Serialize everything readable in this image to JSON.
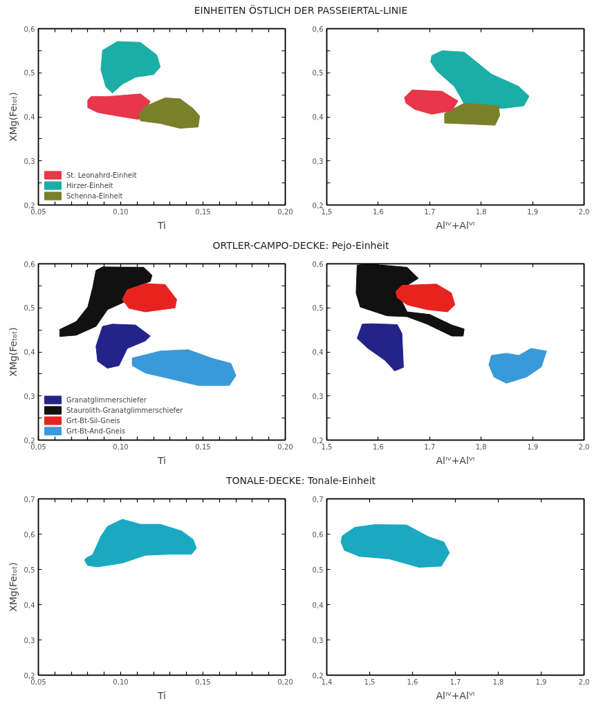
{
  "chart_data": [
    {
      "type": "area",
      "title": "EINHEITEN ÖSTLICH DER PASSEIERTAL-LINIE",
      "xlabel": "Ti",
      "ylabel": "XMg(Feₜₒₜ)",
      "xlim": [
        0.05,
        0.2
      ],
      "ylim": [
        0.2,
        0.6
      ],
      "grid": false,
      "legend": "bottom left",
      "xticks": [
        {
          "value": 0.05,
          "label": "0,05"
        },
        {
          "value": 0.06,
          "label": null
        },
        {
          "value": 0.07,
          "label": null
        },
        {
          "value": 0.08,
          "label": null
        },
        {
          "value": 0.09,
          "label": null
        },
        {
          "value": 0.1,
          "label": "0,10"
        },
        {
          "value": 0.11,
          "label": null
        },
        {
          "value": 0.12,
          "label": null
        },
        {
          "value": 0.13,
          "label": null
        },
        {
          "value": 0.14,
          "label": null
        },
        {
          "value": 0.15,
          "label": "0,15"
        },
        {
          "value": 0.16,
          "label": null
        },
        {
          "value": 0.17,
          "label": null
        },
        {
          "value": 0.18,
          "label": null
        },
        {
          "value": 0.19,
          "label": null
        },
        {
          "value": 0.2,
          "label": "0,20"
        }
      ],
      "yticks": [
        {
          "value": 0.2,
          "label": "0,2"
        },
        {
          "value": 0.25,
          "label": null
        },
        {
          "value": 0.3,
          "label": "0,3"
        },
        {
          "value": 0.35,
          "label": null
        },
        {
          "value": 0.4,
          "label": "0,4"
        },
        {
          "value": 0.45,
          "label": null
        },
        {
          "value": 0.5,
          "label": "0,5"
        },
        {
          "value": 0.55,
          "label": null
        },
        {
          "value": 0.6,
          "label": "0,6"
        }
      ],
      "series": [
        {
          "name": "St. Leonahrd-Einheit",
          "color": "#e8364a",
          "x": [
            0.08,
            0.082,
            0.092,
            0.112,
            0.118,
            0.111,
            0.098,
            0.086,
            0.08
          ],
          "values": [
            0.438,
            0.446,
            0.446,
            0.452,
            0.435,
            0.394,
            0.402,
            0.41,
            0.421
          ]
        },
        {
          "name": "Hirzer-Einheit",
          "color": "#1aaea6",
          "x": [
            0.095,
            0.091,
            0.088,
            0.089,
            0.098,
            0.112,
            0.122,
            0.124,
            0.12,
            0.109,
            0.101
          ],
          "values": [
            0.454,
            0.468,
            0.507,
            0.551,
            0.571,
            0.569,
            0.54,
            0.513,
            0.496,
            0.49,
            0.474
          ]
        },
        {
          "name": "Schenna-Einheit",
          "color": "#7a7f2a",
          "x": [
            0.111,
            0.115,
            0.127,
            0.136,
            0.144,
            0.148,
            0.147,
            0.136,
            0.124,
            0.112
          ],
          "values": [
            0.407,
            0.424,
            0.443,
            0.441,
            0.419,
            0.402,
            0.377,
            0.374,
            0.385,
            0.391
          ]
        }
      ]
    },
    {
      "type": "area",
      "xlabel": "Alᴵⱽ+Alⱽᴵ",
      "xlim": [
        1.5,
        2.0
      ],
      "ylim": [
        0.2,
        0.6
      ],
      "grid": false,
      "legend": false,
      "xticks": [
        {
          "value": 1.5,
          "label": "1,5"
        },
        {
          "value": 1.6,
          "label": "1,6"
        },
        {
          "value": 1.7,
          "label": "1,7"
        },
        {
          "value": 1.8,
          "label": "1,8"
        },
        {
          "value": 1.9,
          "label": "1,9"
        },
        {
          "value": 2.0,
          "label": "2,0"
        }
      ],
      "yticks": [
        {
          "value": 0.2,
          "label": "0,2"
        },
        {
          "value": 0.25,
          "label": null
        },
        {
          "value": 0.3,
          "label": "0,3"
        },
        {
          "value": 0.35,
          "label": null
        },
        {
          "value": 0.4,
          "label": "0,4"
        },
        {
          "value": 0.45,
          "label": null
        },
        {
          "value": 0.5,
          "label": "0,5"
        },
        {
          "value": 0.55,
          "label": null
        },
        {
          "value": 0.6,
          "label": "0,6"
        }
      ],
      "series": [
        {
          "color": "#1aaea6",
          "x": [
            1.704,
            1.724,
            1.767,
            1.82,
            1.873,
            1.893,
            1.883,
            1.84,
            1.767,
            1.748,
            1.714,
            1.702
          ],
          "values": [
            0.539,
            0.55,
            0.547,
            0.497,
            0.469,
            0.447,
            0.425,
            0.419,
            0.43,
            0.469,
            0.504,
            0.525
          ]
        },
        {
          "color": "#7a7f2a",
          "x": [
            1.729,
            1.767,
            1.834,
            1.836,
            1.827,
            1.729
          ],
          "values": [
            0.408,
            0.431,
            0.425,
            0.403,
            0.381,
            0.386
          ]
        },
        {
          "color": "#e8364a",
          "x": [
            1.651,
            1.666,
            1.724,
            1.755,
            1.743,
            1.704,
            1.671,
            1.654
          ],
          "values": [
            0.444,
            0.461,
            0.458,
            0.436,
            0.414,
            0.406,
            0.417,
            0.431
          ]
        }
      ]
    },
    {
      "type": "area",
      "title": "ORTLER-CAMPO-DECKE: Pejo-Einheit",
      "xlabel": "Ti",
      "ylabel": "XMg(Feₜₒₜ)",
      "xlim": [
        0.05,
        0.2
      ],
      "ylim": [
        0.2,
        0.6
      ],
      "grid": false,
      "legend": "bottom left",
      "xticks": [
        {
          "value": 0.05,
          "label": "0,05"
        },
        {
          "value": 0.06,
          "label": null
        },
        {
          "value": 0.07,
          "label": null
        },
        {
          "value": 0.08,
          "label": null
        },
        {
          "value": 0.09,
          "label": null
        },
        {
          "value": 0.1,
          "label": "0,10"
        },
        {
          "value": 0.11,
          "label": null
        },
        {
          "value": 0.12,
          "label": null
        },
        {
          "value": 0.13,
          "label": null
        },
        {
          "value": 0.14,
          "label": null
        },
        {
          "value": 0.15,
          "label": "0,15"
        },
        {
          "value": 0.16,
          "label": null
        },
        {
          "value": 0.17,
          "label": null
        },
        {
          "value": 0.18,
          "label": null
        },
        {
          "value": 0.19,
          "label": null
        },
        {
          "value": 0.2,
          "label": "0,20"
        }
      ],
      "yticks": [
        {
          "value": 0.2,
          "label": "0,2"
        },
        {
          "value": 0.25,
          "label": null
        },
        {
          "value": 0.3,
          "label": "0,3"
        },
        {
          "value": 0.35,
          "label": null
        },
        {
          "value": 0.4,
          "label": "0,4"
        },
        {
          "value": 0.45,
          "label": null
        },
        {
          "value": 0.5,
          "label": "0,5"
        },
        {
          "value": 0.55,
          "label": null
        },
        {
          "value": 0.6,
          "label": "0,6"
        }
      ],
      "series": [
        {
          "name": "Granatglimmerschiefer",
          "color": "#23238a",
          "x": [
            0.092,
            0.086,
            0.085,
            0.089,
            0.095,
            0.109,
            0.118,
            0.115,
            0.104,
            0.099
          ],
          "values": [
            0.363,
            0.379,
            0.413,
            0.458,
            0.463,
            0.461,
            0.436,
            0.425,
            0.408,
            0.369
          ]
        },
        {
          "name": "Staurolith-Granatglimmerschiefer",
          "color": "#111111",
          "x": [
            0.063,
            0.063,
            0.073,
            0.08,
            0.083,
            0.085,
            0.089,
            0.114,
            0.119,
            0.118,
            0.104,
            0.102,
            0.092,
            0.085,
            0.073
          ],
          "values": [
            0.435,
            0.451,
            0.469,
            0.502,
            0.546,
            0.585,
            0.593,
            0.592,
            0.574,
            0.56,
            0.541,
            0.513,
            0.496,
            0.458,
            0.438
          ]
        },
        {
          "name": "Grt-Bt-Sil-Gneis",
          "color": "#e8231f",
          "x": [
            0.101,
            0.104,
            0.115,
            0.127,
            0.134,
            0.133,
            0.115,
            0.105
          ],
          "values": [
            0.519,
            0.541,
            0.555,
            0.553,
            0.519,
            0.5,
            0.491,
            0.499
          ]
        },
        {
          "name": "Grt-Bt-And-Gneis",
          "color": "#3a9ad9",
          "x": [
            0.107,
            0.107,
            0.124,
            0.141,
            0.156,
            0.167,
            0.17,
            0.166,
            0.147,
            0.128,
            0.115
          ],
          "values": [
            0.369,
            0.386,
            0.402,
            0.405,
            0.385,
            0.374,
            0.346,
            0.324,
            0.324,
            0.341,
            0.352
          ]
        }
      ]
    },
    {
      "type": "area",
      "xlabel": "Alᴵⱽ+Alⱽᴵ",
      "xlim": [
        1.5,
        2.0
      ],
      "ylim": [
        0.2,
        0.6
      ],
      "grid": false,
      "legend": false,
      "xticks": [
        {
          "value": 1.5,
          "label": "1,5"
        },
        {
          "value": 1.6,
          "label": "1,6"
        },
        {
          "value": 1.7,
          "label": "1,7"
        },
        {
          "value": 1.8,
          "label": "1,8"
        },
        {
          "value": 1.9,
          "label": "1,9"
        },
        {
          "value": 2.0,
          "label": "2,0"
        }
      ],
      "yticks": [
        {
          "value": 0.2,
          "label": "0,2"
        },
        {
          "value": 0.25,
          "label": null
        },
        {
          "value": 0.3,
          "label": "0,3"
        },
        {
          "value": 0.35,
          "label": null
        },
        {
          "value": 0.4,
          "label": "0,4"
        },
        {
          "value": 0.45,
          "label": null
        },
        {
          "value": 0.5,
          "label": "0,5"
        },
        {
          "value": 0.55,
          "label": null
        },
        {
          "value": 0.6,
          "label": "0,6"
        }
      ],
      "series": [
        {
          "color": "#23238a",
          "x": [
            1.559,
            1.569,
            1.588,
            1.637,
            1.646,
            1.649,
            1.632,
            1.613,
            1.579
          ],
          "values": [
            0.431,
            0.463,
            0.464,
            0.462,
            0.442,
            0.365,
            0.357,
            0.381,
            0.409
          ]
        },
        {
          "color": "#111111",
          "x": [
            1.559,
            1.578,
            1.656,
            1.678,
            1.637,
            1.656,
            1.7,
            1.743,
            1.767,
            1.765,
            1.743,
            1.695,
            1.656,
            1.617,
            1.565,
            1.557
          ],
          "values": [
            0.597,
            0.6,
            0.592,
            0.567,
            0.537,
            0.491,
            0.485,
            0.461,
            0.452,
            0.436,
            0.436,
            0.463,
            0.48,
            0.482,
            0.502,
            0.534
          ]
        },
        {
          "color": "#e8231f",
          "x": [
            1.634,
            1.646,
            1.713,
            1.742,
            1.749,
            1.735,
            1.695,
            1.656,
            1.637
          ],
          "values": [
            0.537,
            0.551,
            0.554,
            0.534,
            0.507,
            0.491,
            0.496,
            0.507,
            0.523
          ]
        },
        {
          "color": "#3a9ad9",
          "x": [
            1.815,
            1.82,
            1.849,
            1.873,
            1.897,
            1.927,
            1.917,
            1.888,
            1.849,
            1.825
          ],
          "values": [
            0.371,
            0.392,
            0.397,
            0.392,
            0.408,
            0.402,
            0.366,
            0.343,
            0.329,
            0.343
          ]
        }
      ]
    },
    {
      "type": "area",
      "title": "TONALE-DECKE: Tonale-Einheit",
      "xlabel": "Ti",
      "ylabel": "XMg(Feₜₒₜ)",
      "xlim": [
        0.05,
        0.2
      ],
      "ylim": [
        0.2,
        0.7
      ],
      "grid": false,
      "legend": false,
      "xticks": [
        {
          "value": 0.05,
          "label": "0,05"
        },
        {
          "value": 0.06,
          "label": null
        },
        {
          "value": 0.07,
          "label": null
        },
        {
          "value": 0.08,
          "label": null
        },
        {
          "value": 0.09,
          "label": null
        },
        {
          "value": 0.1,
          "label": "0,10"
        },
        {
          "value": 0.11,
          "label": null
        },
        {
          "value": 0.12,
          "label": null
        },
        {
          "value": 0.13,
          "label": null
        },
        {
          "value": 0.14,
          "label": null
        },
        {
          "value": 0.15,
          "label": "0,15"
        },
        {
          "value": 0.16,
          "label": null
        },
        {
          "value": 0.17,
          "label": null
        },
        {
          "value": 0.18,
          "label": null
        },
        {
          "value": 0.19,
          "label": null
        },
        {
          "value": 0.2,
          "label": "0,20"
        }
      ],
      "yticks": [
        {
          "value": 0.2,
          "label": "0,2"
        },
        {
          "value": 0.3,
          "label": "0,3"
        },
        {
          "value": 0.4,
          "label": "0,4"
        },
        {
          "value": 0.5,
          "label": "0,5"
        },
        {
          "value": 0.6,
          "label": "0,6"
        },
        {
          "value": 0.7,
          "label": "0,7"
        }
      ],
      "series": [
        {
          "color": "#1aa9c0",
          "x": [
            0.078,
            0.079,
            0.083,
            0.088,
            0.092,
            0.101,
            0.112,
            0.124,
            0.137,
            0.144,
            0.146,
            0.143,
            0.13,
            0.115,
            0.101,
            0.086,
            0.08
          ],
          "values": [
            0.526,
            0.532,
            0.542,
            0.594,
            0.622,
            0.642,
            0.628,
            0.628,
            0.609,
            0.585,
            0.56,
            0.543,
            0.543,
            0.54,
            0.518,
            0.507,
            0.511
          ]
        }
      ]
    },
    {
      "type": "area",
      "xlabel": "Alᴵⱽ+Alⱽᴵ",
      "xlim": [
        1.4,
        2.0
      ],
      "ylim": [
        0.2,
        0.7
      ],
      "grid": false,
      "legend": false,
      "xticks": [
        {
          "value": 1.4,
          "label": "1,4"
        },
        {
          "value": 1.5,
          "label": "1,5"
        },
        {
          "value": 1.6,
          "label": "1,6"
        },
        {
          "value": 1.7,
          "label": "1,7"
        },
        {
          "value": 1.8,
          "label": "1,8"
        },
        {
          "value": 1.9,
          "label": "1,9"
        },
        {
          "value": 2.0,
          "label": "2,0"
        }
      ],
      "yticks": [
        {
          "value": 0.2,
          "label": "0,2"
        },
        {
          "value": 0.3,
          "label": "0,3"
        },
        {
          "value": 0.4,
          "label": "0,4"
        },
        {
          "value": 0.5,
          "label": "0,5"
        },
        {
          "value": 0.6,
          "label": "0,6"
        },
        {
          "value": 0.7,
          "label": "0,7"
        }
      ],
      "series": [
        {
          "color": "#1aa9c0",
          "x": [
            1.433,
            1.436,
            1.465,
            1.511,
            1.586,
            1.638,
            1.673,
            1.686,
            1.667,
            1.615,
            1.545,
            1.476,
            1.441
          ],
          "values": [
            0.578,
            0.595,
            0.619,
            0.627,
            0.626,
            0.592,
            0.578,
            0.547,
            0.509,
            0.506,
            0.53,
            0.537,
            0.554
          ]
        }
      ]
    }
  ]
}
